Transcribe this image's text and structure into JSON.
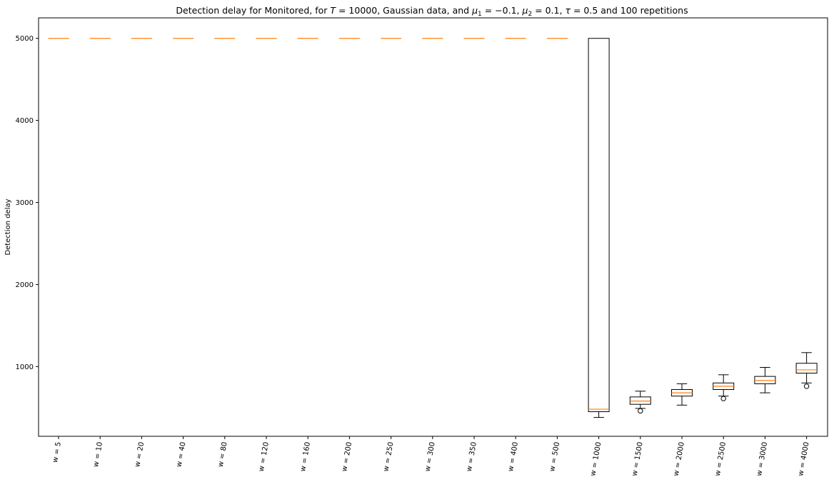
{
  "chart_data": {
    "type": "boxplot",
    "title": "Detection delay for Monitored, for T = 10000, Gaussian data, and μ1 = −0.1, μ2 = 0.1, τ = 0.5 and 100 repetitions",
    "title_parts": {
      "pre": "Detection delay for Monitored, for ",
      "T_var": "T",
      "T_val": " = 10000",
      "mid1": ", Gaussian data, and ",
      "mu": "μ",
      "mu1_sub": "1",
      "mu1_val": " = −0.1, ",
      "mu2_sub": "2",
      "mu2_val": " = 0.1, ",
      "tau": "τ",
      "tau_val": " = 0.5",
      "post": " and 100 repetitions"
    },
    "xlabel": "",
    "ylabel": "Detection delay",
    "ylim": [
      150,
      5250
    ],
    "yticks": [
      1000,
      2000,
      3000,
      4000,
      5000
    ],
    "grid": false,
    "categories": [
      "w = 5",
      "w = 10",
      "w = 20",
      "w = 40",
      "w = 80",
      "w = 120",
      "w = 160",
      "w = 200",
      "w = 250",
      "w = 300",
      "w = 350",
      "w = 400",
      "w = 500",
      "w = 1000",
      "w = 1500",
      "w = 2000",
      "w = 2500",
      "w = 3000",
      "w = 4000"
    ],
    "boxes": [
      {
        "whislo": 5000,
        "q1": 5000,
        "med": 5000,
        "q3": 5000,
        "whishi": 5000,
        "fliers": []
      },
      {
        "whislo": 5000,
        "q1": 5000,
        "med": 5000,
        "q3": 5000,
        "whishi": 5000,
        "fliers": []
      },
      {
        "whislo": 5000,
        "q1": 5000,
        "med": 5000,
        "q3": 5000,
        "whishi": 5000,
        "fliers": []
      },
      {
        "whislo": 5000,
        "q1": 5000,
        "med": 5000,
        "q3": 5000,
        "whishi": 5000,
        "fliers": []
      },
      {
        "whislo": 5000,
        "q1": 5000,
        "med": 5000,
        "q3": 5000,
        "whishi": 5000,
        "fliers": []
      },
      {
        "whislo": 5000,
        "q1": 5000,
        "med": 5000,
        "q3": 5000,
        "whishi": 5000,
        "fliers": []
      },
      {
        "whislo": 5000,
        "q1": 5000,
        "med": 5000,
        "q3": 5000,
        "whishi": 5000,
        "fliers": []
      },
      {
        "whislo": 5000,
        "q1": 5000,
        "med": 5000,
        "q3": 5000,
        "whishi": 5000,
        "fliers": []
      },
      {
        "whislo": 5000,
        "q1": 5000,
        "med": 5000,
        "q3": 5000,
        "whishi": 5000,
        "fliers": []
      },
      {
        "whislo": 5000,
        "q1": 5000,
        "med": 5000,
        "q3": 5000,
        "whishi": 5000,
        "fliers": []
      },
      {
        "whislo": 5000,
        "q1": 5000,
        "med": 5000,
        "q3": 5000,
        "whishi": 5000,
        "fliers": []
      },
      {
        "whislo": 5000,
        "q1": 5000,
        "med": 5000,
        "q3": 5000,
        "whishi": 5000,
        "fliers": []
      },
      {
        "whislo": 5000,
        "q1": 5000,
        "med": 5000,
        "q3": 5000,
        "whishi": 5000,
        "fliers": []
      },
      {
        "whislo": 380,
        "q1": 450,
        "med": 480,
        "q3": 5000,
        "whishi": 5000,
        "fliers": []
      },
      {
        "whislo": 490,
        "q1": 540,
        "med": 580,
        "q3": 630,
        "whishi": 700,
        "fliers": [
          460
        ]
      },
      {
        "whislo": 530,
        "q1": 640,
        "med": 680,
        "q3": 720,
        "whishi": 790,
        "fliers": []
      },
      {
        "whislo": 640,
        "q1": 720,
        "med": 760,
        "q3": 800,
        "whishi": 900,
        "fliers": [
          610
        ]
      },
      {
        "whislo": 680,
        "q1": 790,
        "med": 830,
        "q3": 880,
        "whishi": 990,
        "fliers": []
      },
      {
        "whislo": 800,
        "q1": 920,
        "med": 960,
        "q3": 1040,
        "whishi": 1170,
        "fliers": [
          760
        ]
      }
    ],
    "colors": {
      "box": "#000000",
      "median": "#ff7f0e",
      "axes": "#000000",
      "background": "#ffffff"
    }
  }
}
